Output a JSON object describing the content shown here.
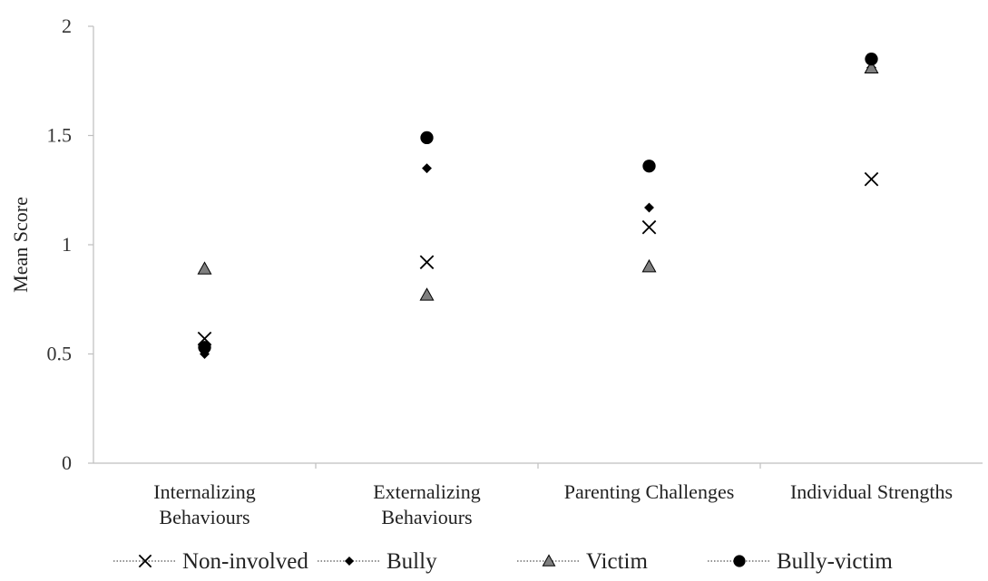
{
  "chart_data": {
    "type": "scatter",
    "title": "",
    "xlabel": "",
    "ylabel": "Mean Score",
    "ylim": [
      0,
      2
    ],
    "yticks": [
      "0",
      "0.5",
      "1",
      "1.5",
      "2"
    ],
    "categories": [
      [
        "Internalizing",
        "Behaviours"
      ],
      [
        "Externalizing",
        "Behaviours"
      ],
      [
        "Parenting Challenges"
      ],
      [
        "Individual Strengths"
      ]
    ],
    "grid": false,
    "legend_position": "bottom",
    "series": [
      {
        "name": "Non-involved",
        "marker": "x",
        "color": "#000000",
        "values": [
          0.57,
          0.92,
          1.08,
          1.3
        ]
      },
      {
        "name": "Bully",
        "marker": "diamond",
        "color": "#000000",
        "values": [
          0.5,
          1.35,
          1.17,
          1.81
        ]
      },
      {
        "name": "Victim",
        "marker": "triangle",
        "color": "#7f7f7f",
        "values": [
          0.89,
          0.77,
          0.9,
          1.81
        ]
      },
      {
        "name": "Bully-victim",
        "marker": "circle",
        "color": "#000000",
        "values": [
          0.53,
          1.49,
          1.36,
          1.85
        ]
      }
    ]
  }
}
